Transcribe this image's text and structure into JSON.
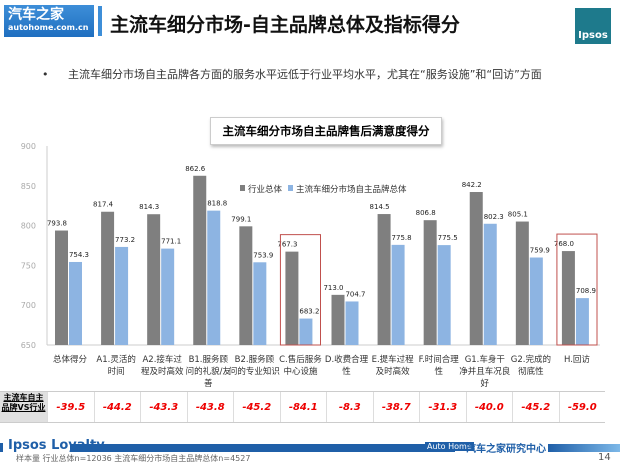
{
  "header": {
    "logo_cn": "汽车之家",
    "logo_url": "autohome.com.cn",
    "title": "主流车细分市场-自主品牌总体及指标得分",
    "ipsos_logo": "Ipsos"
  },
  "bullet": "主流车细分市场自主品牌各方面的服务水平远低于行业平均水平，尤其在“服务设施”和“回访”方面",
  "chart_data": {
    "type": "bar",
    "title": "主流车细分市场自主品牌售后满意度得分",
    "categories": [
      "总体得分",
      "A1.灵活的时间",
      "A2.接车过程及时高效",
      "B1.服务顾问的礼貌/友善",
      "B2.服务顾问的专业知识",
      "C.售后服务中心设施",
      "D.收费合理性",
      "E.提车过程及时高效",
      "F.时间合理性",
      "G1.车身干净并且车况良好",
      "G2.完成的彻底性",
      "H.回访"
    ],
    "series": [
      {
        "name": "行业总体",
        "color": "#7f7f7f",
        "values": [
          793.8,
          817.4,
          814.3,
          862.6,
          799.1,
          767.3,
          713.0,
          814.5,
          806.8,
          842.2,
          805.1,
          768.0
        ]
      },
      {
        "name": "主流车细分市场自主品牌总体",
        "color": "#8db4e2",
        "values": [
          754.3,
          773.2,
          771.1,
          818.8,
          753.9,
          683.2,
          704.7,
          775.8,
          775.5,
          802.3,
          759.9,
          708.9
        ]
      }
    ],
    "ylim": [
      650,
      900
    ],
    "yticks": [
      650,
      700,
      750,
      800,
      850,
      900
    ],
    "legend": "top-center",
    "highlighted": [
      "C.售后服务中心设施",
      "H.回访"
    ],
    "highlight_color": "#c0504d"
  },
  "diff_table": {
    "header": "主流车自主品牌VS行业",
    "values": [
      "-39.5",
      "-44.2",
      "-43.3",
      "-43.8",
      "-45.2",
      "-84.1",
      "-8.3",
      "-38.7",
      "-31.3",
      "-40.0",
      "-45.2",
      "-59.0"
    ]
  },
  "footer": {
    "brand": "Ipsos Loyalty",
    "autohome": "Auto Home",
    "center": "汽车之家研究中心",
    "sample": "样本量 行业总体n=12036 主流车细分市场自主品牌总体n=4527",
    "page": "14"
  }
}
